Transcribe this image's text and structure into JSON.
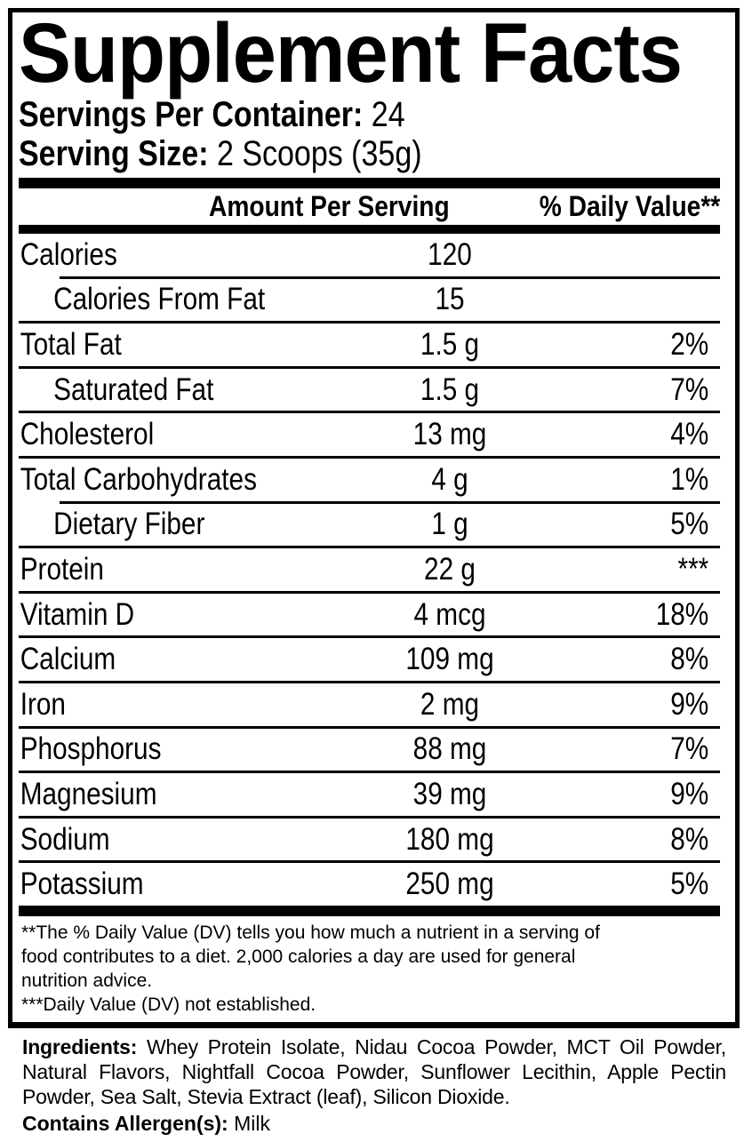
{
  "colors": {
    "foreground": "#000000",
    "background": "#ffffff"
  },
  "title": "Supplement Facts",
  "servings_per_container": {
    "label": "Servings Per Container:",
    "value": "24"
  },
  "serving_size": {
    "label": "Serving Size:",
    "value": "2 Scoops (35g)"
  },
  "columns": {
    "amount": "Amount Per Serving",
    "daily_value": "% Daily Value**"
  },
  "nutrients": [
    {
      "name": "Calories",
      "amount": "120",
      "dv": "",
      "indent": false,
      "divider_above": "none"
    },
    {
      "name": "Calories From Fat",
      "amount": "15",
      "dv": "",
      "indent": true,
      "divider_above": "inset"
    },
    {
      "name": "Total Fat",
      "amount": "1.5 g",
      "dv": "2%",
      "indent": false,
      "divider_above": "full"
    },
    {
      "name": "Saturated Fat",
      "amount": "1.5 g",
      "dv": "7%",
      "indent": true,
      "divider_above": "full"
    },
    {
      "name": "Cholesterol",
      "amount": "13 mg",
      "dv": "4%",
      "indent": false,
      "divider_above": "full"
    },
    {
      "name": "Total Carbohydrates",
      "amount": "4 g",
      "dv": "1%",
      "indent": false,
      "divider_above": "full"
    },
    {
      "name": "Dietary Fiber",
      "amount": "1 g",
      "dv": "5%",
      "indent": true,
      "divider_above": "inset"
    },
    {
      "name": "Protein",
      "amount": "22 g",
      "dv": "***",
      "indent": false,
      "divider_above": "full"
    },
    {
      "name": "Vitamin D",
      "amount": "4 mcg",
      "dv": "18%",
      "indent": false,
      "divider_above": "full"
    },
    {
      "name": "Calcium",
      "amount": "109 mg",
      "dv": "8%",
      "indent": false,
      "divider_above": "full"
    },
    {
      "name": "Iron",
      "amount": "2 mg",
      "dv": "9%",
      "indent": false,
      "divider_above": "full"
    },
    {
      "name": "Phosphorus",
      "amount": "88 mg",
      "dv": "7%",
      "indent": false,
      "divider_above": "full"
    },
    {
      "name": "Magnesium",
      "amount": "39 mg",
      "dv": "9%",
      "indent": false,
      "divider_above": "full"
    },
    {
      "name": "Sodium",
      "amount": "180 mg",
      "dv": "8%",
      "indent": false,
      "divider_above": "full"
    },
    {
      "name": "Potassium",
      "amount": "250 mg",
      "dv": "5%",
      "indent": false,
      "divider_above": "full"
    }
  ],
  "footnotes": "**The % Daily Value (DV) tells you how much a nutrient in a serving of\nfood contributes to a diet. 2,000 calories a day are used for general\nnutrition advice.\n***Daily Value (DV) not established.",
  "ingredients": {
    "label": "Ingredients:",
    "text": "Whey Protein Isolate, Nidau Cocoa Powder, MCT Oil Powder, Natural Flavors, Nightfall Cocoa Powder, Sunflower Lecithin, Apple Pectin Powder, Sea Salt, Stevia Extract (leaf), Silicon Dioxide."
  },
  "allergens": {
    "label": "Contains Allergen(s):",
    "value": "Milk"
  }
}
